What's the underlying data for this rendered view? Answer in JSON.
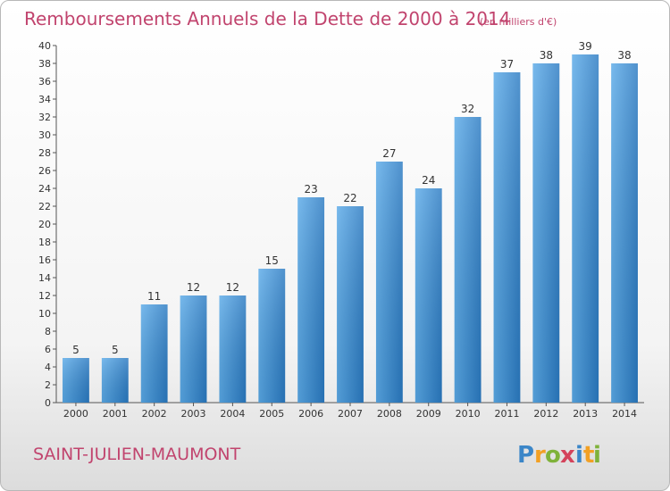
{
  "chart_data": {
    "type": "bar",
    "title": "Remboursements Annuels de la Dette de 2000 à 2014",
    "subtitle": "(en milliers d'€)",
    "xlabel": "",
    "ylabel": "",
    "categories": [
      "2000",
      "2001",
      "2002",
      "2003",
      "2004",
      "2005",
      "2006",
      "2007",
      "2008",
      "2009",
      "2010",
      "2011",
      "2012",
      "2013",
      "2014"
    ],
    "values": [
      5,
      5,
      11,
      12,
      12,
      15,
      23,
      22,
      27,
      24,
      32,
      37,
      38,
      39,
      38
    ],
    "ylim": [
      0,
      40
    ],
    "ytick_step": 2,
    "grid": false,
    "bar_color": "#3d8fd3"
  },
  "footer": {
    "place": "SAINT-JULIEN-MAUMONT",
    "logo_letters": [
      {
        "ch": "P",
        "color": "#3b86c8"
      },
      {
        "ch": "r",
        "color": "#f2a024"
      },
      {
        "ch": "o",
        "color": "#7fb23a"
      },
      {
        "ch": "x",
        "color": "#d4435b"
      },
      {
        "ch": "i",
        "color": "#3b86c8"
      },
      {
        "ch": "t",
        "color": "#f2a024"
      },
      {
        "ch": "i",
        "color": "#7fb23a"
      }
    ]
  }
}
